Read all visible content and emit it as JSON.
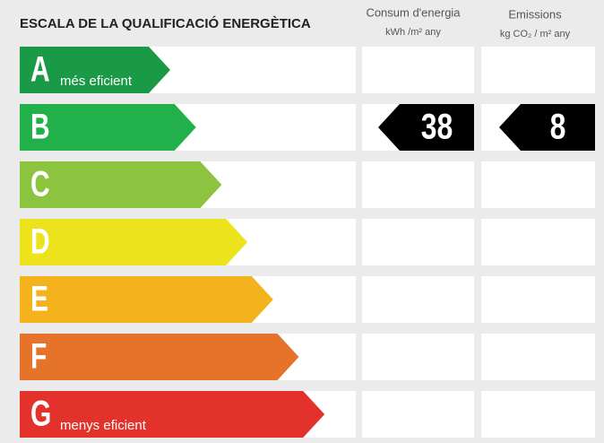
{
  "header": {
    "title": "ESCALA DE LA QUALIFICACIÓ ENERGÈTICA",
    "energy": {
      "label": "Consum d'energia",
      "unit": "kWh /m² any"
    },
    "emissions": {
      "label": "Emissions",
      "unit": "kg CO₂ / m² any"
    }
  },
  "rows": [
    {
      "letter": "A",
      "note": "més eficient",
      "color": "#1a9a46"
    },
    {
      "letter": "B",
      "color": "#22b04b",
      "energy": 38,
      "emissions": 8
    },
    {
      "letter": "C",
      "color": "#8cc43f"
    },
    {
      "letter": "D",
      "color": "#ece31c"
    },
    {
      "letter": "E",
      "color": "#f4b21d"
    },
    {
      "letter": "F",
      "color": "#e5742a"
    },
    {
      "letter": "G",
      "note": "menys eficient",
      "color": "#e2322b"
    }
  ]
}
